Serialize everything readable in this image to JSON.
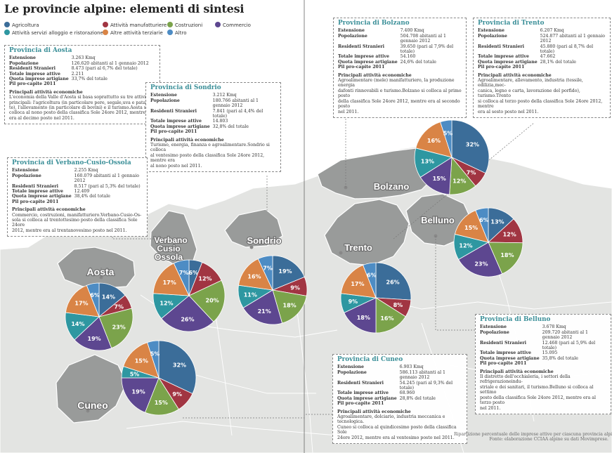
{
  "title": "Le provincie alpine: elementi di sintesi",
  "colors": {
    "agricoltura": "#3b6d99",
    "attivita_manifatturiere": "#a13542",
    "costruzioni": "#7ba34b",
    "commercio": "#5d4790",
    "servizi_alloggio": "#2e97a1",
    "terziarie": "#d98446",
    "altro": "#4d8cc4"
  },
  "chart_data": {
    "type": "pie",
    "legend": {
      "placement": "top-left",
      "entries": [
        {
          "key": "agricoltura",
          "label": "Agricoltura",
          "color": "#3b6d99"
        },
        {
          "key": "attivita_manifatturiere",
          "label": "Attività manufatturiere",
          "color": "#a13542"
        },
        {
          "key": "costruzioni",
          "label": "Costruzioni",
          "color": "#7ba34b"
        },
        {
          "key": "commercio",
          "label": "Commercio",
          "color": "#5d4790"
        },
        {
          "key": "servizi_alloggio",
          "label": "Attività servizi alloggio e ristorazione",
          "color": "#2e97a1"
        },
        {
          "key": "terziarie",
          "label": "Altre attività terziarie",
          "color": "#d98446"
        },
        {
          "key": "altro",
          "label": "Altro",
          "color": "#4d8cc4"
        }
      ]
    },
    "provinces": [
      {
        "name": "Aosta",
        "slices": [
          {
            "key": "agricoltura",
            "value": 14,
            "label": "14%"
          },
          {
            "key": "attivita_manifatturiere",
            "value": 7,
            "label": "7%"
          },
          {
            "key": "costruzioni",
            "value": 23,
            "label": "23%"
          },
          {
            "key": "commercio",
            "value": 19,
            "label": "19%"
          },
          {
            "key": "servizi_alloggio",
            "value": 14,
            "label": "14%"
          },
          {
            "key": "terziarie",
            "value": 17,
            "label": "17%"
          },
          {
            "key": "altro",
            "value": 6,
            "label": "6%"
          }
        ]
      },
      {
        "name": "Verbano Cusio Ossola",
        "slices": [
          {
            "key": "agricoltura",
            "value": 6,
            "label": "6%"
          },
          {
            "key": "attivita_manifatturiere",
            "value": 12,
            "label": "12%"
          },
          {
            "key": "costruzioni",
            "value": 20,
            "label": "20%"
          },
          {
            "key": "commercio",
            "value": 26,
            "label": "26%"
          },
          {
            "key": "servizi_alloggio",
            "value": 12,
            "label": "12%"
          },
          {
            "key": "terziarie",
            "value": 17,
            "label": "17%"
          },
          {
            "key": "altro",
            "value": 7,
            "label": "7%"
          }
        ]
      },
      {
        "name": "Sondrio",
        "slices": [
          {
            "key": "agricoltura",
            "value": 19,
            "label": "19%"
          },
          {
            "key": "attivita_manifatturiere",
            "value": 9,
            "label": "9%"
          },
          {
            "key": "costruzioni",
            "value": 18,
            "label": "18%"
          },
          {
            "key": "commercio",
            "value": 21,
            "label": "21%"
          },
          {
            "key": "servizi_alloggio",
            "value": 11,
            "label": "11%"
          },
          {
            "key": "terziarie",
            "value": 16,
            "label": "16%"
          },
          {
            "key": "altro",
            "value": 7,
            "label": "7%"
          }
        ]
      },
      {
        "name": "Cuneo",
        "slices": [
          {
            "key": "agricoltura",
            "value": 32,
            "label": "32%"
          },
          {
            "key": "attivita_manifatturiere",
            "value": 9,
            "label": "9%"
          },
          {
            "key": "costruzioni",
            "value": 15,
            "label": "15%"
          },
          {
            "key": "commercio",
            "value": 19,
            "label": "19%"
          },
          {
            "key": "servizi_alloggio",
            "value": 5,
            "label": "5%"
          },
          {
            "key": "terziarie",
            "value": 15,
            "label": "15%"
          },
          {
            "key": "altro",
            "value": 5,
            "label": "5%"
          }
        ]
      },
      {
        "name": "Trento",
        "slices": [
          {
            "key": "agricoltura",
            "value": 26,
            "label": "26%"
          },
          {
            "key": "attivita_manifatturiere",
            "value": 8,
            "label": "8%"
          },
          {
            "key": "costruzioni",
            "value": 16,
            "label": "16%"
          },
          {
            "key": "commercio",
            "value": 18,
            "label": "18%"
          },
          {
            "key": "servizi_alloggio",
            "value": 9,
            "label": "9%"
          },
          {
            "key": "terziarie",
            "value": 17,
            "label": "17%"
          },
          {
            "key": "altro",
            "value": 6,
            "label": "6%"
          }
        ]
      },
      {
        "name": "Bolzano",
        "slices": [
          {
            "key": "agricoltura",
            "value": 32,
            "label": "32%"
          },
          {
            "key": "attivita_manifatturiere",
            "value": 7,
            "label": "7%"
          },
          {
            "key": "costruzioni",
            "value": 12,
            "label": "12%"
          },
          {
            "key": "commercio",
            "value": 15,
            "label": "15%"
          },
          {
            "key": "servizi_alloggio",
            "value": 13,
            "label": "13%"
          },
          {
            "key": "terziarie",
            "value": 16,
            "label": "16%"
          },
          {
            "key": "altro",
            "value": 5,
            "label": "5%"
          }
        ]
      },
      {
        "name": "Belluno",
        "slices": [
          {
            "key": "agricoltura",
            "value": 13,
            "label": "13%"
          },
          {
            "key": "attivita_manifatturiere",
            "value": 12,
            "label": "12%"
          },
          {
            "key": "costruzioni",
            "value": 18,
            "label": "18%"
          },
          {
            "key": "commercio",
            "value": 23,
            "label": "23%"
          },
          {
            "key": "servizi_alloggio",
            "value": 12,
            "label": "12%"
          },
          {
            "key": "terziarie",
            "value": 15,
            "label": "15%"
          },
          {
            "key": "altro",
            "value": 6,
            "label": "6%"
          }
        ]
      }
    ]
  },
  "map_labels": {
    "aosta": "Aosta",
    "verbano_lines": [
      "Verbano",
      "Cusio",
      "Ossola"
    ],
    "sondrio": "Sondrio",
    "cuneo": "Cuneo",
    "trento": "Trento",
    "bolzano": "Bolzano",
    "belluno": "Belluno"
  },
  "info_boxes": {
    "aosta": {
      "title": "Provincia di Aosta",
      "stats": [
        {
          "k": "Estensione",
          "v": "3.263 Kmq"
        },
        {
          "k": "Popolazione",
          "v": "126.620 abitanti al 1 gennaio 2012"
        },
        {
          "k": "Residenti Stranieri",
          "v": "8.473 (pari al 6,7% del totale)"
        },
        {
          "k": "Totale imprese attive",
          "v": "2.211"
        },
        {
          "k": "Quota imprese artigiane",
          "v": "33,7% del totale"
        },
        {
          "k": "Pil pro-capite 2011",
          "v": ""
        }
      ],
      "ph": "Principali attività economiche",
      "lines": [
        "L'economia della Valle d'Aosta si basa soprattutto su tre attività",
        "principali: l'agricoltura (in particolare pere, segale,uva e pata-",
        "te), l'allevamento (in particolare di bovini) e il turismo.Aosta si",
        "colloca al nono posto della classifica Sole 24ore 2012, mentre",
        "era al decimo posto nel 2011."
      ]
    },
    "sondrio": {
      "title": "Provincia di Sondrio",
      "stats": [
        {
          "k": "Estensione",
          "v": "3.212 Kmq"
        },
        {
          "k": "Popolazione",
          "v": "180.766 abitanti al 1 gennaio 2012"
        },
        {
          "k": "Residenti Stranieri",
          "v": "7.841 (pari al 4,4% del totale)"
        },
        {
          "k": "Totale imprese attive",
          "v": "14.803"
        },
        {
          "k": "Quota imprese artigiane",
          "v": "32,8% del totale"
        },
        {
          "k": "Pil pro-capite 2011",
          "v": ""
        }
      ],
      "ph": "Principali attività economiche",
      "lines": [
        "Turismo, energia, finanza e agroalimentare.Sondrio si colloca",
        "al ventesimo posto della classifica Sole 24ore 2012, mentre era",
        "al nono posto nel 2011."
      ]
    },
    "verbano": {
      "title": "Provincia di Verbano-Cusio-Ossola",
      "stats": [
        {
          "k": "Estensione",
          "v": "2.255 Kmq"
        },
        {
          "k": "Popolazione",
          "v": "160.079 abitanti al 1 gennaio 2012"
        },
        {
          "k": "Residenti Stranieri",
          "v": "8.517 (pari al 5,3% del totale)"
        },
        {
          "k": "Totale imprese attive",
          "v": "12.409"
        },
        {
          "k": "Quota imprese artigiane",
          "v": "38,4% del totale"
        },
        {
          "k": "Pil pro-capite 2011",
          "v": ""
        }
      ],
      "ph": "Principali attività economiche",
      "lines": [
        "Commercio, costruzioni, manifatturiero.Verbano-Cusio-Os-",
        "sola si colloca al trentottesimo posto della classifica Sole 24ore",
        "2012, mentre era al trentanovesimo posto nel 2011."
      ]
    },
    "bolzano": {
      "title": "Provincia di Bolzano",
      "stats": [
        {
          "k": "Estensione",
          "v": "7.400 Kmq"
        },
        {
          "k": "Popolazione",
          "v": "504.708 abitanti al 1 gennaio 2012"
        },
        {
          "k": "Residenti Stranieri",
          "v": "39.650 (pari al 7,9% del totale)"
        },
        {
          "k": "Totale imprese attive",
          "v": "54.160"
        },
        {
          "k": "Quota imprese artigiane",
          "v": "24,6% del totale"
        },
        {
          "k": "Pil pro-capite 2011",
          "v": ""
        }
      ],
      "ph": "Principali attività economiche",
      "lines": [
        "Agroalimentare (mele) manifatturiero, la produzione energia",
        "dafonti rinnovabili e turismo.Bolzano si colloca al primo posto",
        "della classifica Sole 24ore 2012, mentre era al secondo posto",
        "nel 2011."
      ]
    },
    "trento": {
      "title": "Provincia di Trento",
      "stats": [
        {
          "k": "Estensione",
          "v": "6.207 Kmq"
        },
        {
          "k": "Popolazione",
          "v": "524.877 abitanti al 1 gennaio 2012"
        },
        {
          "k": "Residenti Stranieri",
          "v": "45.880 (pari al 8,7% del totale)"
        },
        {
          "k": "Totale imprese attive",
          "v": "47.662"
        },
        {
          "k": "Quota imprese artigiane",
          "v": "28,1% del totale"
        },
        {
          "k": "Pil pro-capite 2011",
          "v": ""
        }
      ],
      "ph": "Principali attività economiche",
      "lines": [
        "Agroalimentare, allevamento, industria (tessile, edilizia,mec-",
        "canica, legno e carta, lavorazione del porfido), turismo.Trento",
        "si colloca al terzo posto della classifica Sole 24ore 2012, mentre",
        "era al sesto posto nel 2011."
      ]
    },
    "belluno": {
      "title": "Provincia di Belluno",
      "stats": [
        {
          "k": "Estensione",
          "v": "3.678 Kmq"
        },
        {
          "k": "Popolazione",
          "v": "209.720 abitanti al 1 gennaio 2012"
        },
        {
          "k": "Residenti Stranieri",
          "v": "12.468 (pari al 5,9% del totale)"
        },
        {
          "k": "Totale imprese attive",
          "v": "15.095"
        },
        {
          "k": "Quota imprese artigiane",
          "v": "35,8% del totale"
        },
        {
          "k": "Pil pro-capite 2011",
          "v": ""
        }
      ],
      "ph": "Principali attività economiche",
      "lines": [
        "Il distretto dell'occhialeria, i settori della refrigerazioneindu-",
        "striale e dei sanitari, il turismo.Belluno si colloca al settimo",
        "posto della classifica Sole 24ore 2012, mentre era al terzo posto",
        "nel 2011."
      ]
    },
    "cuneo": {
      "title": "Provincia di Cuneo",
      "stats": [
        {
          "k": "Estensione",
          "v": "6.903 Kmq"
        },
        {
          "k": "Popolazione",
          "v": "586.113 abitanti al 1 gennaio 2012"
        },
        {
          "k": "Residenti Stranieri",
          "v": "54.245 (pari al 9,3% del totale)"
        },
        {
          "k": "Totale imprese attive",
          "v": "68.960"
        },
        {
          "k": "Quota imprese artigiane",
          "v": "28,8% del totale"
        },
        {
          "k": "Pil pro-capite 2011",
          "v": ""
        }
      ],
      "ph": "Principali attività economiche",
      "lines": [
        "Agroalimentare, dolciario, industria meccanica e tecnologica.",
        "Cuneo si colloca al quindicesimo posto della classifica Sole",
        "24ore 2012, mentre era al ventesimo posto nel 2011."
      ]
    }
  },
  "footnote": {
    "line1": "Ripartizione percentuale delle imprese attive per ciascuna provincia alpina;",
    "line2": "Fonte: elaborazione CCIAA alpine su dati Movimprese."
  }
}
